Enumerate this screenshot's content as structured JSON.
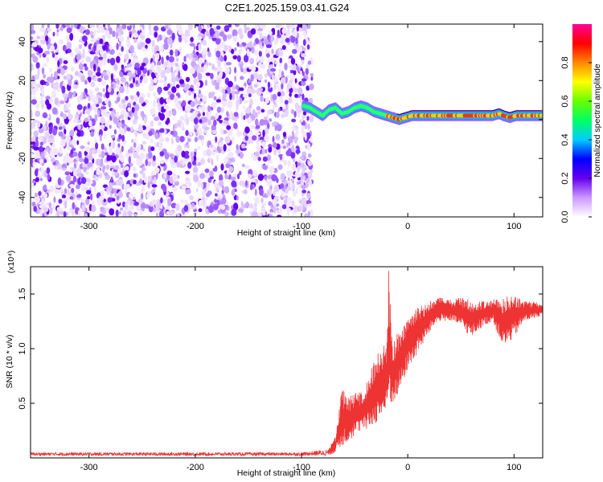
{
  "title": "C2E1.2025.159.03.41.G24",
  "chart_data": [
    {
      "type": "heatmap",
      "xlabel": "Height of straight line (km)",
      "ylabel": "Frequency (Hz)",
      "xlim": [
        -355,
        127
      ],
      "ylim": [
        -50,
        49
      ],
      "xticks": [
        -300,
        -200,
        -100,
        0,
        100
      ],
      "yticks": [
        -40,
        -20,
        0,
        20,
        40
      ],
      "noise_region_x": [
        -355,
        -90
      ],
      "signal_trace": {
        "x": [
          -98,
          -92,
          -86,
          -80,
          -74,
          -68,
          -62,
          -56,
          -50,
          -44,
          -38,
          -32,
          -26,
          -20,
          -14,
          -8,
          -2,
          4,
          10,
          20,
          30,
          40,
          50,
          60,
          70,
          80,
          86,
          90,
          96,
          102,
          110,
          120,
          127
        ],
        "y": [
          7,
          6,
          4,
          2,
          5,
          6,
          3,
          4,
          6,
          7,
          6,
          4,
          3,
          2,
          1,
          0,
          1,
          2,
          2,
          2,
          2,
          2,
          2,
          2,
          2,
          2,
          3,
          2,
          1,
          2,
          2,
          2,
          2
        ]
      },
      "colorbar": {
        "label": "Normalized spectral amplitude",
        "ticks": [
          "0.0",
          "0.2",
          "0.4",
          "0.6",
          "0.8"
        ],
        "range": [
          0,
          1
        ],
        "colors": [
          "#ffffff",
          "#cc99ff",
          "#6600ee",
          "#0000ff",
          "#00ccff",
          "#00ff66",
          "#66ff00",
          "#ffff00",
          "#ff8800",
          "#ff0000",
          "#ff0099"
        ]
      }
    },
    {
      "type": "line",
      "xlabel": "Height of straight line (km)",
      "ylabel": "SNR (10 * v/v)",
      "yscale_label": "(x10⁴)",
      "xlim": [
        -355,
        127
      ],
      "ylim": [
        0,
        1.75
      ],
      "xticks": [
        -300,
        -200,
        -100,
        0,
        100
      ],
      "yticks": [
        0.5,
        1.0,
        1.5
      ],
      "ytick_labels": [
        "0.5",
        "1.0",
        "1.5"
      ],
      "line_color": "#ee3333",
      "envelope": {
        "x": [
          -355,
          -200,
          -100,
          -75,
          -68,
          -62,
          -56,
          -50,
          -44,
          -38,
          -32,
          -26,
          -20,
          -18,
          -14,
          -10,
          -4,
          0,
          6,
          12,
          18,
          24,
          30,
          40,
          50,
          60,
          70,
          80,
          90,
          100,
          110,
          127
        ],
        "low": [
          0.02,
          0.02,
          0.02,
          0.02,
          0.05,
          0.1,
          0.15,
          0.2,
          0.25,
          0.25,
          0.3,
          0.35,
          0.4,
          0.45,
          0.5,
          0.55,
          0.7,
          0.8,
          0.9,
          1.0,
          1.1,
          1.2,
          1.25,
          1.25,
          1.2,
          1.1,
          1.2,
          1.25,
          1.0,
          1.1,
          1.25,
          1.3
        ],
        "high": [
          0.05,
          0.05,
          0.05,
          0.08,
          0.2,
          0.65,
          0.55,
          0.6,
          0.6,
          0.7,
          0.9,
          1.0,
          1.05,
          1.75,
          1.05,
          1.15,
          1.2,
          1.3,
          1.35,
          1.4,
          1.42,
          1.45,
          1.47,
          1.45,
          1.47,
          1.45,
          1.44,
          1.45,
          1.48,
          1.5,
          1.44,
          1.42
        ]
      }
    }
  ]
}
